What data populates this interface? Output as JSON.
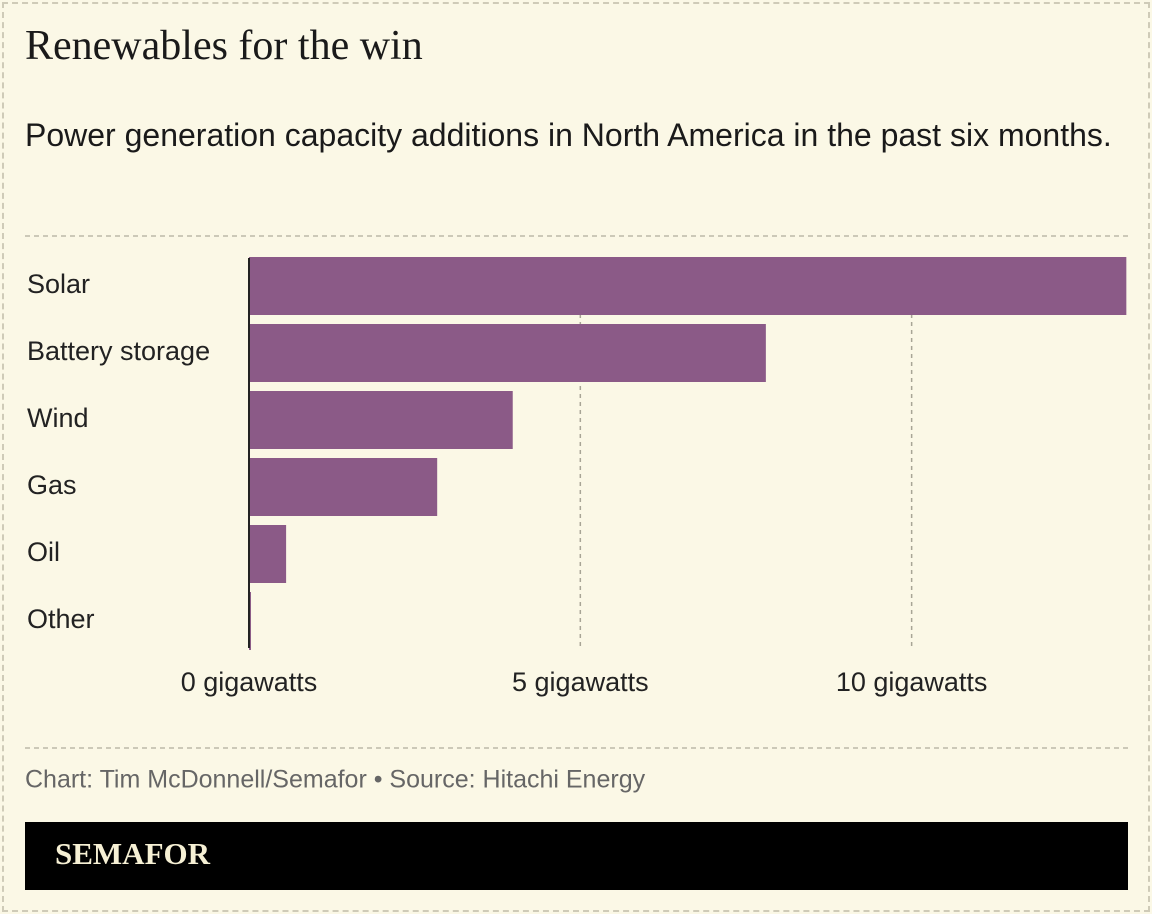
{
  "chart_data": {
    "type": "bar",
    "orientation": "horizontal",
    "title": "Renewables for the win",
    "subtitle": "Power generation capacity additions in North America in the past six months.",
    "categories": [
      "Solar",
      "Battery storage",
      "Wind",
      "Gas",
      "Oil",
      "Other"
    ],
    "values": [
      13.24,
      7.8,
      3.98,
      2.84,
      0.56,
      0.03
    ],
    "color": "#8b5a87",
    "xlim": [
      0,
      13.25
    ],
    "xticks": [
      {
        "value": 0,
        "label": "0 gigawatts"
      },
      {
        "value": 5,
        "label": "5 gigawatts"
      },
      {
        "value": 10,
        "label": "10 gigawatts"
      }
    ],
    "grid": true,
    "source": "Chart: Tim McDonnell/Semafor • Source: Hitachi Energy",
    "brand": "SEMAFOR"
  }
}
